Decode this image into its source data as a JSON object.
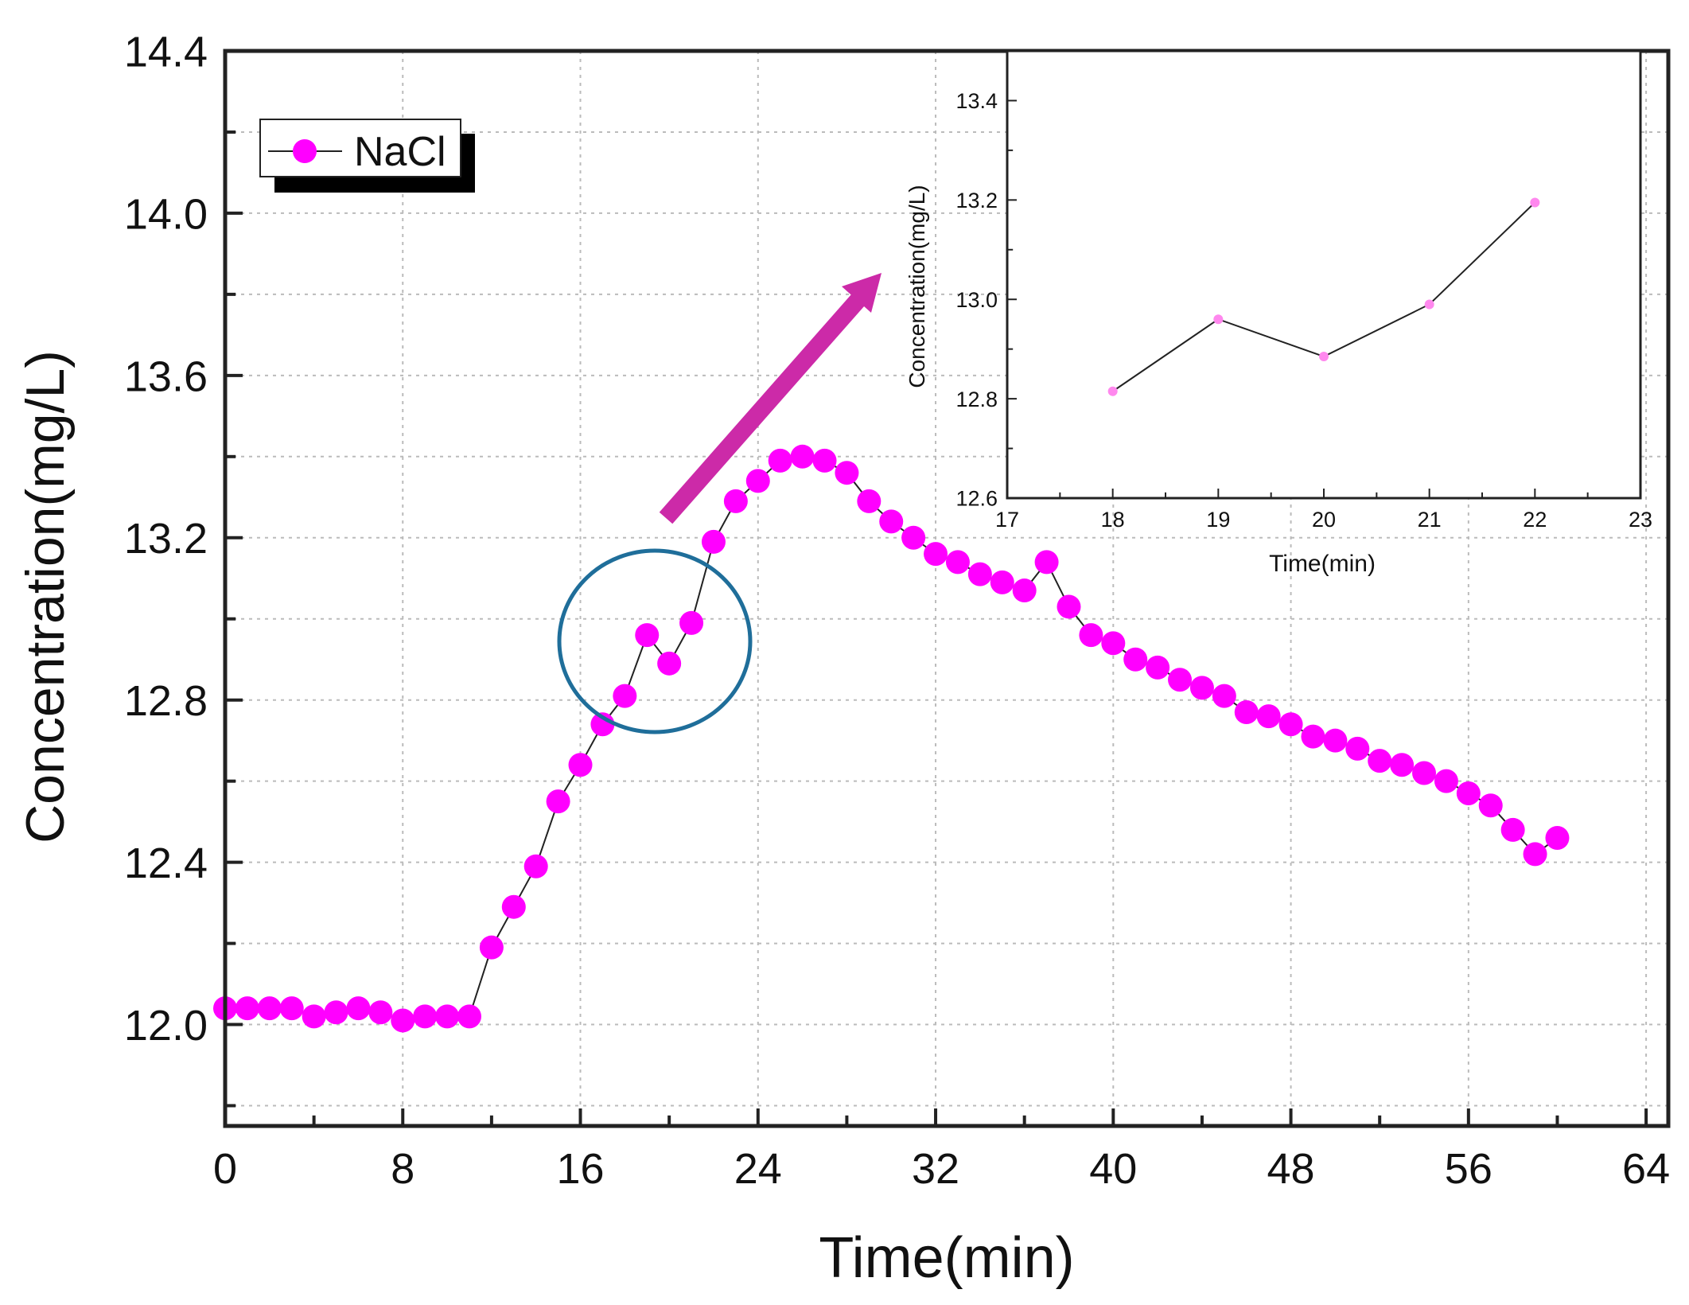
{
  "chart_data": [
    {
      "type": "line",
      "xlabel": "Time(min)",
      "ylabel": "Concentration(mg/L)",
      "xlim": [
        0,
        65
      ],
      "ylim": [
        11.75,
        14.4
      ],
      "xticks": [
        "0",
        "8",
        "16",
        "24",
        "32",
        "40",
        "48",
        "56",
        "64"
      ],
      "yticks": [
        "12.0",
        "12.4",
        "12.8",
        "13.2",
        "13.6",
        "14.0",
        "14.4"
      ],
      "grid": true,
      "legend": "top-left",
      "series": [
        {
          "name": "NaCl",
          "color": "#ff00ff",
          "marker": "circle",
          "x": [
            0,
            1,
            2,
            3,
            4,
            5,
            6,
            7,
            8,
            9,
            10,
            11,
            12,
            13,
            14,
            15,
            16,
            17,
            18,
            19,
            20,
            21,
            22,
            23,
            24,
            25,
            26,
            27,
            28,
            29,
            30,
            31,
            32,
            33,
            34,
            35,
            36,
            37,
            38,
            39,
            40,
            41,
            42,
            43,
            44,
            45,
            46,
            47,
            48,
            49,
            50,
            51,
            52,
            53,
            54,
            55,
            56,
            57,
            58,
            59,
            60
          ],
          "y": [
            12.04,
            12.04,
            12.04,
            12.04,
            12.02,
            12.03,
            12.04,
            12.03,
            12.01,
            12.02,
            12.02,
            12.02,
            12.19,
            12.29,
            12.39,
            12.55,
            12.64,
            12.74,
            12.81,
            12.96,
            12.89,
            12.99,
            13.19,
            13.29,
            13.34,
            13.39,
            13.4,
            13.39,
            13.36,
            13.29,
            13.24,
            13.2,
            13.16,
            13.14,
            13.11,
            13.09,
            13.07,
            13.14,
            13.03,
            12.96,
            12.94,
            12.9,
            12.88,
            12.85,
            12.83,
            12.81,
            12.77,
            12.76,
            12.74,
            12.71,
            12.7,
            12.68,
            12.65,
            12.64,
            12.62,
            12.6,
            12.57,
            12.54,
            12.48,
            12.42,
            12.46
          ]
        }
      ],
      "annotations": {
        "highlight_circle_color": "#1f6e9a",
        "arrow_color": "#cc2aa8"
      }
    },
    {
      "type": "line",
      "xlabel": "Time(min)",
      "ylabel": "Concentration(mg/L)",
      "xlim": [
        17,
        23
      ],
      "ylim": [
        12.6,
        13.5
      ],
      "xticks": [
        "17",
        "18",
        "19",
        "20",
        "21",
        "22",
        "23"
      ],
      "yticks": [
        "12.6",
        "12.8",
        "13.0",
        "13.2",
        "13.4"
      ],
      "grid": false,
      "series": [
        {
          "color": "#ff88ee",
          "marker": "circle",
          "x": [
            18,
            19,
            20,
            21,
            22
          ],
          "y": [
            12.815,
            12.96,
            12.885,
            12.99,
            13.195
          ]
        }
      ]
    }
  ]
}
